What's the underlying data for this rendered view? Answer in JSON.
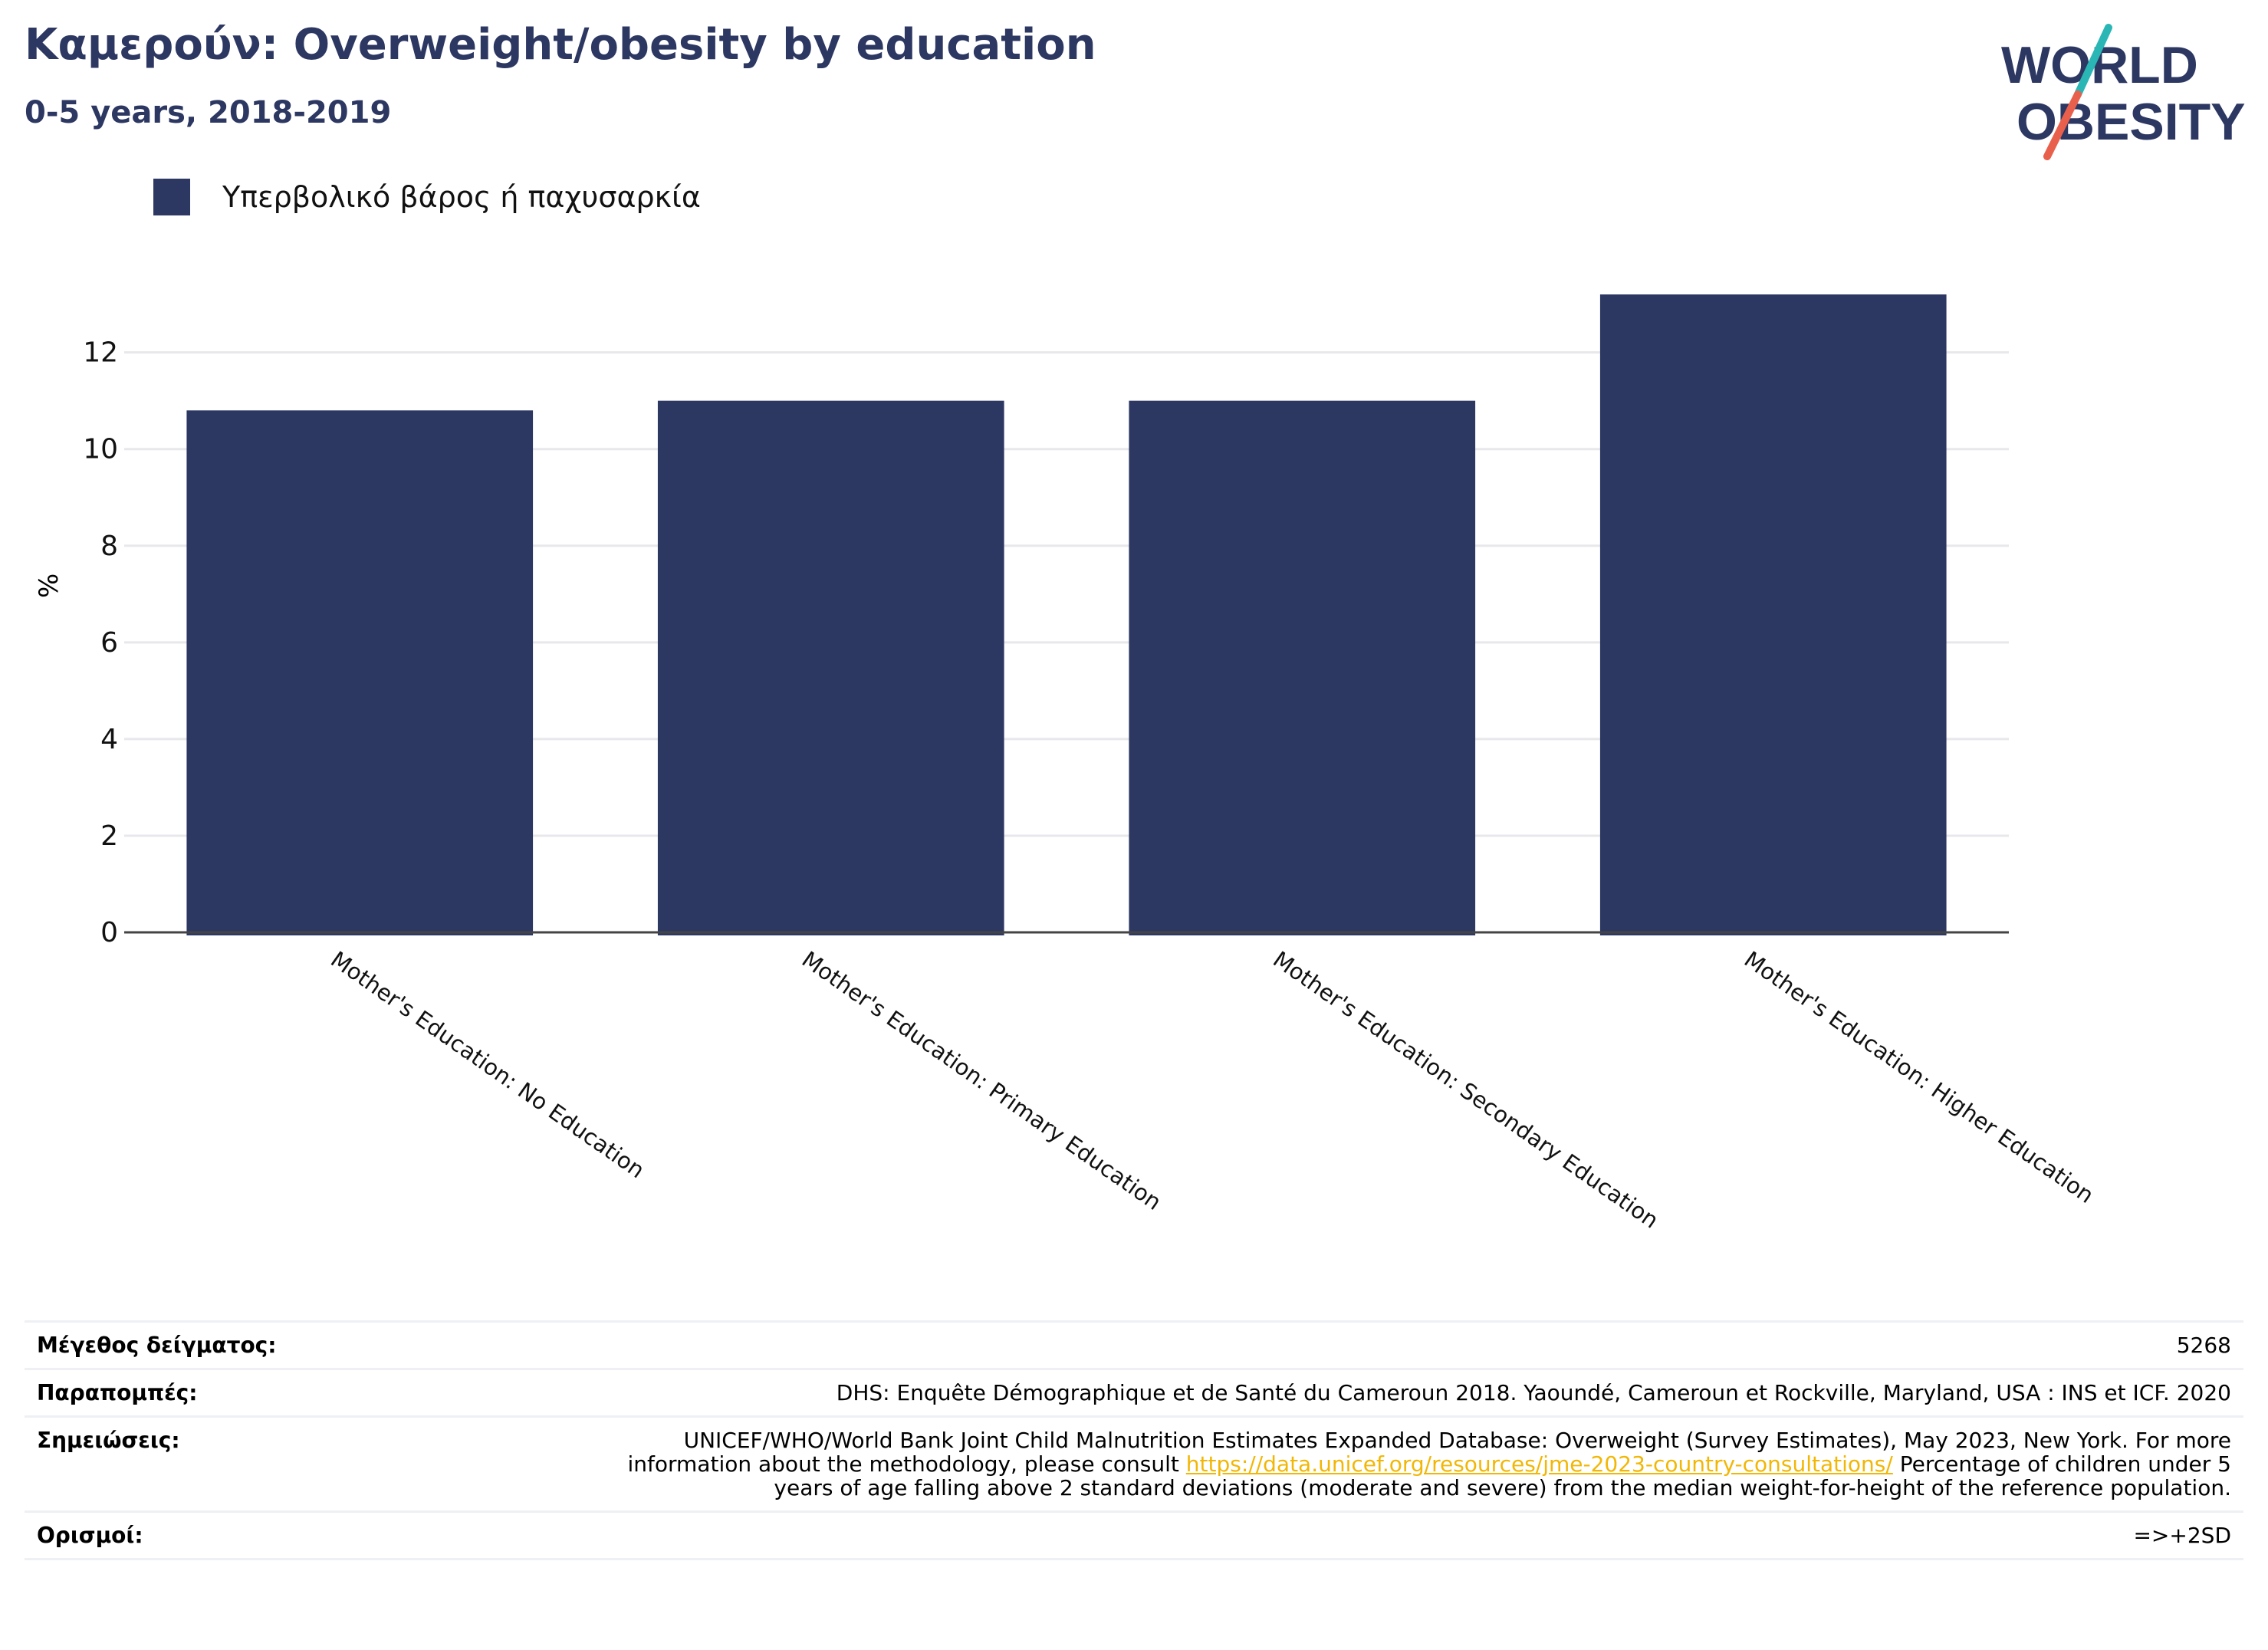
{
  "header": {
    "title": "Καμερούν: Overweight/obesity by education",
    "subtitle": "0-5 years, 2018-2019"
  },
  "logo": {
    "line1": "WORLD",
    "line2": "OBESITY",
    "colors": {
      "text": "#2c3762",
      "slash_top": "#2bb6b6",
      "slash_bottom": "#e8604c"
    }
  },
  "colors": {
    "bar": "#2c3762",
    "grid": "#e8e8ec",
    "axis": "#444444",
    "link": "#f2b705"
  },
  "chart_data": {
    "type": "bar",
    "categories": [
      "Mother's Education: No Education",
      "Mother's Education: Primary Education",
      "Mother's Education: Secondary Education",
      "Mother's Education: Higher Education"
    ],
    "series": [
      {
        "name": "Υπερβολικό βάρος ή παχυσαρκία",
        "values": [
          10.8,
          11.0,
          11.0,
          13.2
        ]
      }
    ],
    "ylabel": "%",
    "ylim": [
      0,
      13.2
    ],
    "yticks": [
      0,
      2,
      4,
      6,
      8,
      10,
      12
    ],
    "grid": true,
    "legend_position": "top-left"
  },
  "footer": {
    "sample_label": "Μέγεθος δείγματος:",
    "sample_value": "5268",
    "refs_label": "Παραπομπές:",
    "refs_value": "DHS: Enquête Démographique et de Santé du Cameroun 2018. Yaoundé, Cameroun et Rockville, Maryland, USA : INS et ICF. 2020",
    "notes_label": "Σημειώσεις:",
    "notes_text_before": "UNICEF/WHO/World Bank Joint Child Malnutrition Estimates Expanded Database: Overweight (Survey Estimates), May 2023, New York. For more information about the methodology, please consult ",
    "notes_link": "https://data.unicef.org/resources/jme-2023-country-consultations/",
    "notes_text_after": " Percentage of children under 5 years of age falling above 2 standard deviations (moderate and severe) from the median weight-for-height of the reference population.",
    "defs_label": "Ορισμοί:",
    "defs_value": "=>+2SD"
  }
}
